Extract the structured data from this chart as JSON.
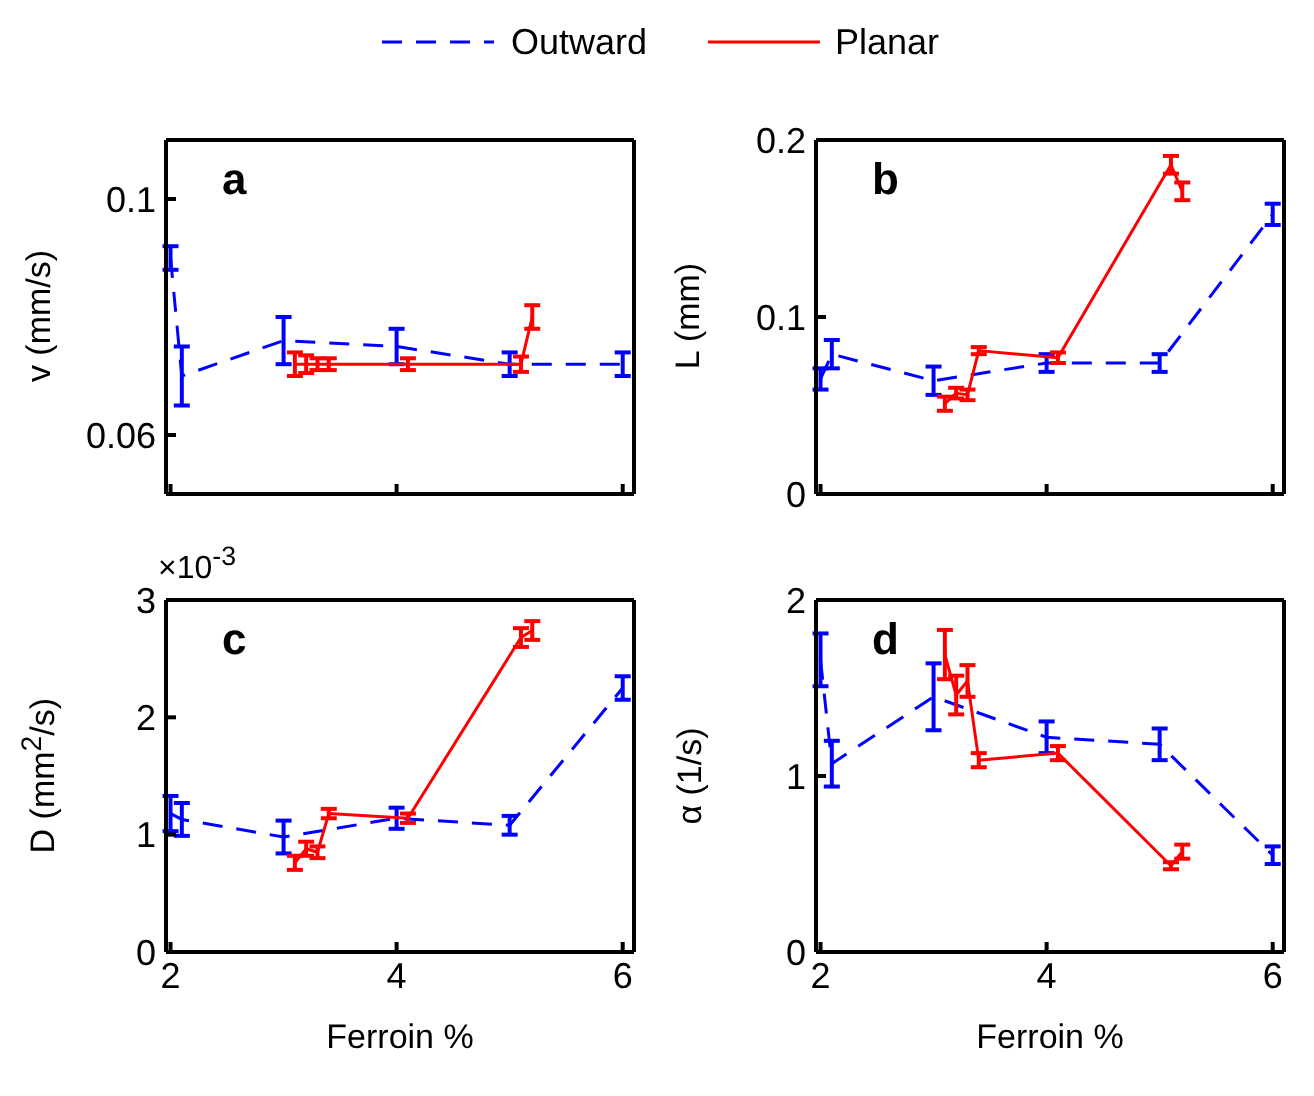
{
  "chart_data": [
    {
      "type": "line",
      "title": "a",
      "ylabel": "v (mm/s)",
      "xlim": [
        1.96,
        6.1
      ],
      "xticks": [
        2,
        4,
        6
      ],
      "ylim": [
        0.05,
        0.11
      ],
      "yticks": [
        0.06,
        0.1
      ],
      "tick_labels": "y",
      "marker": "none",
      "legend": "top",
      "series": [
        {
          "name": "Outward",
          "color": "#0000ff",
          "line_style": "dashed",
          "x": [
            2.0,
            2.1,
            3.0,
            4.0,
            5.0,
            6.0
          ],
          "values": [
            0.09,
            0.07,
            0.076,
            0.075,
            0.072,
            0.072
          ],
          "errors": [
            0.002,
            0.005,
            0.004,
            0.003,
            0.002,
            0.002
          ]
        },
        {
          "name": "Planar",
          "color": "#ff0000",
          "line_style": "solid",
          "x": [
            3.1,
            3.2,
            3.3,
            3.4,
            4.1,
            5.1,
            5.2
          ],
          "values": [
            0.072,
            0.072,
            0.072,
            0.072,
            0.072,
            0.072,
            0.08
          ],
          "errors": [
            0.002,
            0.0015,
            0.001,
            0.001,
            0.001,
            0.0013,
            0.002
          ]
        }
      ]
    },
    {
      "type": "line",
      "title": "b",
      "ylabel": "L (mm)",
      "xlim": [
        1.96,
        6.1
      ],
      "xticks": [
        2,
        4,
        6
      ],
      "ylim": [
        0,
        0.2
      ],
      "yticks": [
        0,
        0.1,
        0.2
      ],
      "tick_labels": "y",
      "marker": "none",
      "series": [
        {
          "color": "#0000ff",
          "line_style": "dashed",
          "x": [
            2.0,
            2.1,
            3.0,
            4.0,
            5.0,
            6.0
          ],
          "values": [
            0.065,
            0.079,
            0.064,
            0.074,
            0.074,
            0.158
          ],
          "errors": [
            0.006,
            0.008,
            0.008,
            0.005,
            0.005,
            0.006
          ]
        },
        {
          "color": "#ff0000",
          "line_style": "solid",
          "x": [
            3.1,
            3.2,
            3.3,
            3.4,
            4.1,
            5.1,
            5.2
          ],
          "values": [
            0.051,
            0.057,
            0.056,
            0.081,
            0.077,
            0.186,
            0.171
          ],
          "errors": [
            0.004,
            0.003,
            0.003,
            0.002,
            0.003,
            0.005,
            0.005
          ]
        }
      ]
    },
    {
      "type": "line",
      "title": "c",
      "ylabel": "D (mm$^{2}$/s)",
      "xlabel": "Ferroin %",
      "annotations": [
        "×10$^{-3}$"
      ],
      "xlim": [
        1.96,
        6.1
      ],
      "xticks": [
        2,
        4,
        6
      ],
      "ylim": [
        0,
        3
      ],
      "yticks": [
        0,
        1,
        2,
        3
      ],
      "marker": "none",
      "series": [
        {
          "color": "#0000ff",
          "line_style": "dashed",
          "x": [
            2.0,
            2.1,
            3.0,
            4.0,
            5.0,
            6.0
          ],
          "values": [
            1.18,
            1.13,
            0.98,
            1.14,
            1.08,
            2.25
          ],
          "errors": [
            0.15,
            0.14,
            0.14,
            0.09,
            0.08,
            0.1
          ]
        },
        {
          "color": "#ff0000",
          "line_style": "solid",
          "x": [
            3.1,
            3.2,
            3.3,
            3.4,
            4.1,
            5.1,
            5.2
          ],
          "values": [
            0.76,
            0.88,
            0.85,
            1.18,
            1.14,
            2.68,
            2.74
          ],
          "errors": [
            0.06,
            0.06,
            0.05,
            0.04,
            0.04,
            0.08,
            0.08
          ]
        }
      ]
    },
    {
      "type": "line",
      "title": "d",
      "ylabel": "α (1/s)",
      "xlabel": "Ferroin %",
      "xlim": [
        1.96,
        6.1
      ],
      "xticks": [
        2,
        4,
        6
      ],
      "ylim": [
        0,
        2
      ],
      "yticks": [
        0,
        1,
        2
      ],
      "marker": "none",
      "series": [
        {
          "color": "#0000ff",
          "line_style": "dashed",
          "x": [
            2.0,
            2.1,
            3.0,
            4.0,
            5.0,
            6.0
          ],
          "values": [
            1.66,
            1.07,
            1.45,
            1.22,
            1.18,
            0.55
          ],
          "errors": [
            0.15,
            0.13,
            0.19,
            0.09,
            0.09,
            0.05
          ]
        },
        {
          "color": "#ff0000",
          "line_style": "solid",
          "x": [
            3.1,
            3.2,
            3.3,
            3.4,
            4.1,
            5.1,
            5.2
          ],
          "values": [
            1.69,
            1.46,
            1.54,
            1.09,
            1.13,
            0.49,
            0.57
          ],
          "errors": [
            0.14,
            0.11,
            0.09,
            0.04,
            0.04,
            0.02,
            0.04
          ]
        }
      ]
    }
  ]
}
